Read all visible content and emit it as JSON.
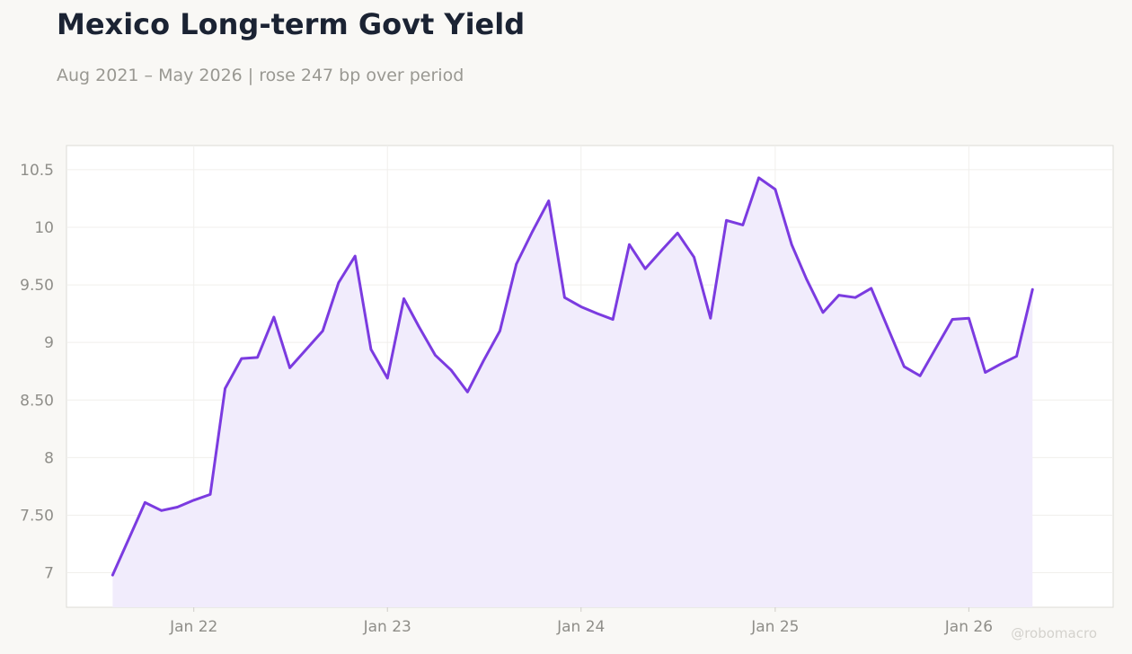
{
  "chart_data": {
    "type": "area",
    "title": "Mexico Long-term Govt Yield",
    "subtitle": "Aug 2021 – May 2026 | rose 247 bp over period",
    "xlabel": "",
    "ylabel": "",
    "ylim": [
      6.7,
      10.71
    ],
    "xlim": [
      "2021-05-06",
      "2026-09-30"
    ],
    "grid": true,
    "legend": "none",
    "line_color": "#7b3be0",
    "fill_color": "#f1ecfc",
    "y_ticks": [
      {
        "value": 7,
        "label": "7"
      },
      {
        "value": 7.5,
        "label": "7.50"
      },
      {
        "value": 8,
        "label": "8"
      },
      {
        "value": 8.5,
        "label": "8.50"
      },
      {
        "value": 9,
        "label": "9"
      },
      {
        "value": 9.5,
        "label": "9.50"
      },
      {
        "value": 10,
        "label": "10"
      },
      {
        "value": 10.5,
        "label": "10.5"
      }
    ],
    "x_ticks": [
      {
        "value": "2022-01-01",
        "label": "Jan 22"
      },
      {
        "value": "2023-01-01",
        "label": "Jan 23"
      },
      {
        "value": "2024-01-01",
        "label": "Jan 24"
      },
      {
        "value": "2025-01-01",
        "label": "Jan 25"
      },
      {
        "value": "2026-01-01",
        "label": "Jan 26"
      }
    ],
    "series": [
      {
        "x": [
          "2021-08-01",
          "2021-09-01",
          "2021-10-01",
          "2021-11-01",
          "2021-12-01",
          "2022-01-01",
          "2022-02-01",
          "2022-03-01",
          "2022-04-01",
          "2022-05-01",
          "2022-06-01",
          "2022-07-01",
          "2022-08-01",
          "2022-09-01",
          "2022-10-01",
          "2022-11-01",
          "2022-12-01",
          "2023-01-01",
          "2023-02-01",
          "2023-03-01",
          "2023-04-01",
          "2023-05-01",
          "2023-06-01",
          "2023-07-01",
          "2023-08-01",
          "2023-09-01",
          "2023-10-01",
          "2023-11-01",
          "2023-12-01",
          "2024-01-01",
          "2024-02-01",
          "2024-03-01",
          "2024-04-01",
          "2024-05-01",
          "2024-06-01",
          "2024-07-01",
          "2024-08-01",
          "2024-09-01",
          "2024-10-01",
          "2024-11-01",
          "2024-12-01",
          "2025-01-01",
          "2025-02-01",
          "2025-03-01",
          "2025-04-01",
          "2025-05-01",
          "2025-06-01",
          "2025-07-01",
          "2025-08-01",
          "2025-09-01",
          "2025-10-01",
          "2025-11-01",
          "2025-12-01",
          "2026-01-01",
          "2026-02-01",
          "2026-03-01",
          "2026-04-01",
          "2026-05-01"
        ],
        "values": [
          6.98,
          7.3,
          7.61,
          7.54,
          7.57,
          7.63,
          7.68,
          8.6,
          8.86,
          8.87,
          9.22,
          8.78,
          8.94,
          9.1,
          9.52,
          9.75,
          8.94,
          8.69,
          9.38,
          9.14,
          8.89,
          8.76,
          8.57,
          8.84,
          9.1,
          9.68,
          9.96,
          10.23,
          9.39,
          9.31,
          9.25,
          9.2,
          9.85,
          9.64,
          9.8,
          9.95,
          9.74,
          9.21,
          10.06,
          10.02,
          10.43,
          10.33,
          9.85,
          9.55,
          9.26,
          9.41,
          9.39,
          9.47,
          9.13,
          8.79,
          8.71,
          8.96,
          9.2,
          9.21,
          8.74,
          8.81,
          8.88,
          9.46
        ]
      }
    ]
  },
  "watermark": "@robomacro"
}
